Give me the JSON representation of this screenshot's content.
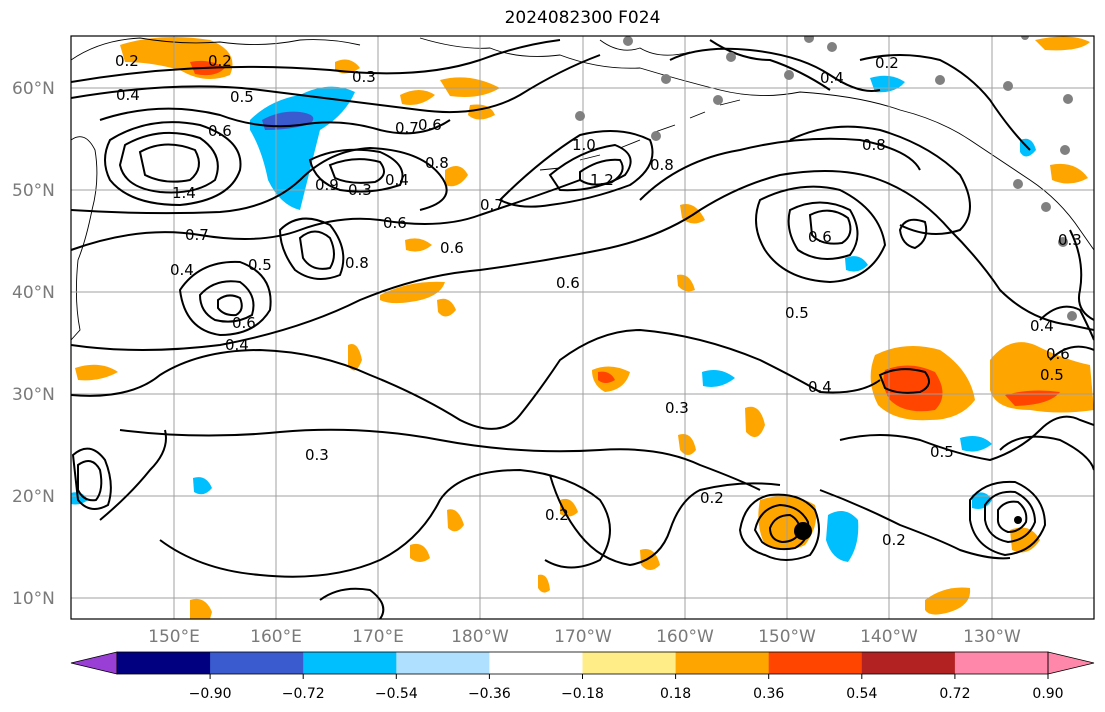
{
  "title": "2024082300 F024",
  "lat_labels": [
    "60°N",
    "50°N",
    "40°N",
    "30°N",
    "20°N",
    "10°N"
  ],
  "lon_labels": [
    "150°E",
    "160°E",
    "170°E",
    "180°W",
    "170°W",
    "160°W",
    "150°W",
    "140°W",
    "130°W"
  ],
  "contour_labels": [
    "0.2",
    "0.2",
    "0.4",
    "0.5",
    "0.3",
    "0.6",
    "0.7",
    "0.6",
    "0.8",
    "1.4",
    "0.7",
    "0.4",
    "0.5",
    "0.6",
    "0.4",
    "0.8",
    "0.9",
    "0.3",
    "0.4",
    "0.6",
    "0.6",
    "0.7",
    "0.6",
    "1.0",
    "1.2",
    "0.8",
    "0.4",
    "0.2",
    "0.8",
    "0.6",
    "0.5",
    "0.4",
    "0.3",
    "0.3",
    "0.2",
    "0.2",
    "0.5",
    "0.2",
    "0.3",
    "0.4",
    "0.6",
    "0.5"
  ],
  "colorbar": {
    "ticks": [
      "−0.90",
      "−0.72",
      "−0.54",
      "−0.36",
      "−0.18",
      "0.18",
      "0.36",
      "0.54",
      "0.72",
      "0.90"
    ],
    "colors": {
      "under": "#9a3fd6",
      "bins": [
        "#000080",
        "#3a5bd0",
        "#00bfff",
        "#b0e0ff",
        "#ffffff",
        "#ffee88",
        "#ffa500",
        "#ff4500",
        "#b22222",
        "#ff88aa"
      ]
    }
  },
  "colors": {
    "contour": "#000000",
    "grid": "#a0a0a0",
    "coast": "#000000",
    "positive_low": "#ffa500",
    "positive_high": "#ff4500",
    "negative": "#00bfff",
    "negative_deep": "#3a5bd0",
    "station": "#808080"
  }
}
